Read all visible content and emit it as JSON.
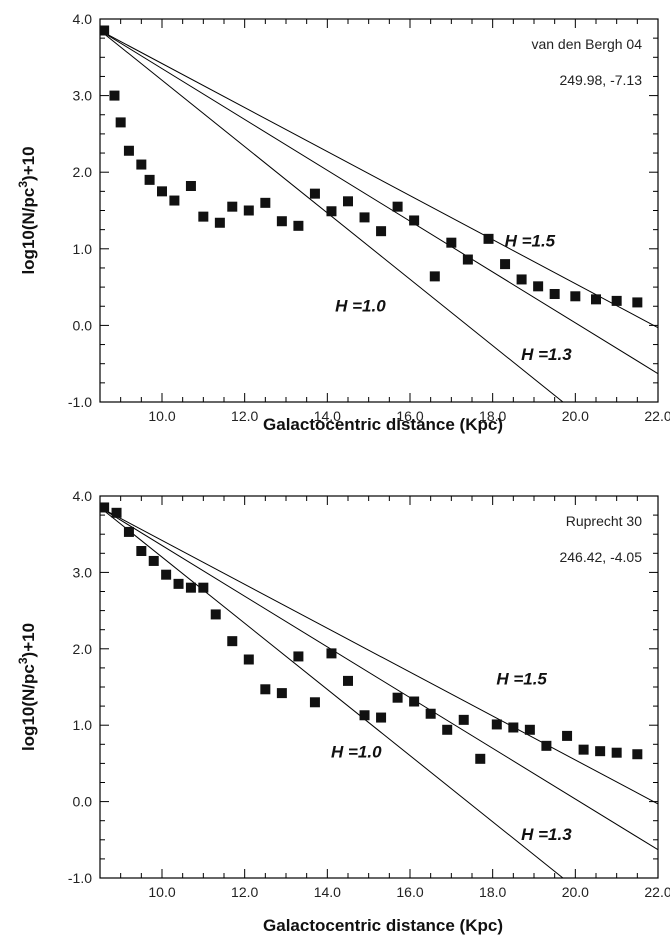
{
  "chart_data": [
    {
      "type": "scatter",
      "title": "",
      "annotation_name": "van den Bergh 04",
      "annotation_coords": "249.98, -7.13",
      "xlabel": "Galactocentric distance (Kpc)",
      "ylabel_prefix": "log10(N/pc",
      "ylabel_sup": "3",
      "ylabel_suffix": ")+10",
      "xlim": [
        8.5,
        22.0
      ],
      "ylim": [
        -1.0,
        4.0
      ],
      "x_ticks": [
        10.0,
        12.0,
        14.0,
        16.0,
        18.0,
        20.0,
        22.0
      ],
      "x_tick_labels": [
        "10.0",
        "12.0",
        "14.0",
        "16.0",
        "18.0",
        "20.0",
        "22.0"
      ],
      "y_ticks": [
        -1.0,
        0.0,
        1.0,
        2.0,
        3.0,
        4.0
      ],
      "y_tick_labels": [
        "-1.0",
        "0.0",
        "1.0",
        "2.0",
        "3.0",
        "4.0"
      ],
      "series": [
        {
          "marker": "square",
          "x": [
            8.6,
            8.85,
            9.0,
            9.2,
            9.5,
            9.7,
            10.0,
            10.3,
            10.7,
            11.0,
            11.4,
            11.7,
            12.1,
            12.5,
            12.9,
            13.3,
            13.7,
            14.1,
            14.5,
            14.9,
            15.3,
            15.7,
            16.1,
            16.6,
            17.0,
            17.4,
            17.9,
            18.3,
            18.7,
            19.1,
            19.5,
            20.0,
            20.5,
            21.0,
            21.5
          ],
          "y": [
            3.85,
            3.0,
            2.65,
            2.28,
            2.1,
            1.9,
            1.75,
            1.63,
            1.82,
            1.42,
            1.34,
            1.55,
            1.5,
            1.6,
            1.36,
            1.3,
            1.72,
            1.49,
            1.62,
            1.41,
            1.23,
            1.55,
            1.37,
            0.64,
            1.08,
            0.86,
            1.13,
            0.8,
            0.6,
            0.51,
            0.41,
            0.38,
            0.34,
            0.32,
            0.3
          ]
        }
      ],
      "model_lines": [
        {
          "label": "H =1.0",
          "x0": 8.5,
          "y0": 3.85,
          "x1": 19.7,
          "y1": -1.0
        },
        {
          "label": "H =1.3",
          "x0": 8.5,
          "y0": 3.85,
          "x1": 22.0,
          "y1": -0.63
        },
        {
          "label": "H =1.5",
          "x0": 8.5,
          "y0": 3.85,
          "x1": 22.0,
          "y1": -0.03
        }
      ],
      "line_labels": [
        {
          "text": "H =1.0",
          "x": 14.8,
          "y": 0.18
        },
        {
          "text": "H =1.3",
          "x": 19.3,
          "y": -0.45
        },
        {
          "text": "H =1.5",
          "x": 18.9,
          "y": 1.03
        }
      ]
    },
    {
      "type": "scatter",
      "title": "",
      "annotation_name": "Ruprecht 30",
      "annotation_coords": "246.42, -4.05",
      "xlabel": "Galactocentric distance (Kpc)",
      "ylabel_prefix": "log10(N/pc",
      "ylabel_sup": "3",
      "ylabel_suffix": ")+10",
      "xlim": [
        8.5,
        22.0
      ],
      "ylim": [
        -1.0,
        4.0
      ],
      "x_ticks": [
        10.0,
        12.0,
        14.0,
        16.0,
        18.0,
        20.0,
        22.0
      ],
      "x_tick_labels": [
        "10.0",
        "12.0",
        "14.0",
        "16.0",
        "18.0",
        "20.0",
        "22.0"
      ],
      "y_ticks": [
        -1.0,
        0.0,
        1.0,
        2.0,
        3.0,
        4.0
      ],
      "y_tick_labels": [
        "-1.0",
        "0.0",
        "1.0",
        "2.0",
        "3.0",
        "4.0"
      ],
      "series": [
        {
          "marker": "square",
          "x": [
            8.6,
            8.9,
            9.2,
            9.5,
            9.8,
            10.1,
            10.4,
            10.7,
            11.0,
            11.3,
            11.7,
            12.1,
            12.5,
            12.9,
            13.3,
            13.7,
            14.1,
            14.5,
            14.9,
            15.3,
            15.7,
            16.1,
            16.5,
            16.9,
            17.3,
            17.7,
            18.1,
            18.5,
            18.9,
            19.3,
            19.8,
            20.2,
            20.6,
            21.0,
            21.5
          ],
          "y": [
            3.85,
            3.78,
            3.53,
            3.28,
            3.15,
            2.97,
            2.85,
            2.8,
            2.8,
            2.45,
            2.1,
            1.86,
            1.47,
            1.42,
            1.9,
            1.3,
            1.94,
            1.58,
            1.13,
            1.1,
            1.36,
            1.31,
            1.15,
            0.94,
            1.07,
            0.56,
            1.01,
            0.97,
            0.94,
            0.73,
            0.86,
            0.68,
            0.66,
            0.64,
            0.62
          ]
        }
      ],
      "model_lines": [
        {
          "label": "H =1.0",
          "x0": 8.5,
          "y0": 3.85,
          "x1": 19.7,
          "y1": -1.0
        },
        {
          "label": "H =1.3",
          "x0": 8.5,
          "y0": 3.85,
          "x1": 22.0,
          "y1": -0.63
        },
        {
          "label": "H =1.5",
          "x0": 8.5,
          "y0": 3.85,
          "x1": 22.0,
          "y1": -0.03
        }
      ],
      "line_labels": [
        {
          "text": "H =1.0",
          "x": 14.7,
          "y": 0.58
        },
        {
          "text": "H =1.3",
          "x": 19.3,
          "y": -0.5
        },
        {
          "text": "H =1.5",
          "x": 18.7,
          "y": 1.53
        }
      ]
    }
  ]
}
